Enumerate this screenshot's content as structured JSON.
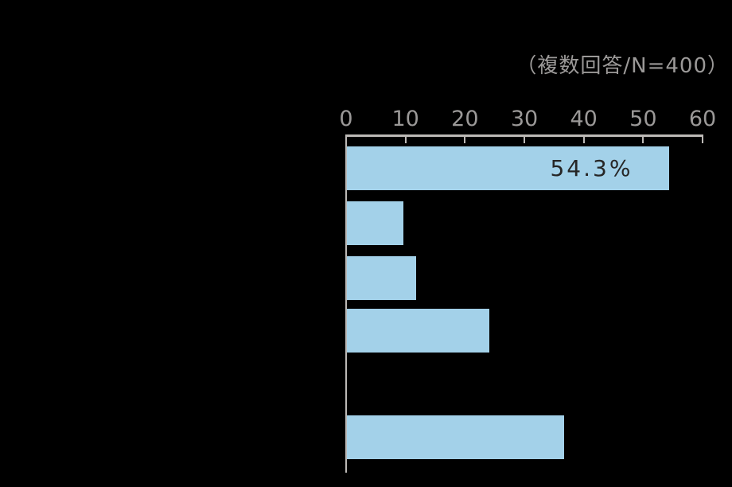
{
  "header": {
    "note": "（複数回答/N=400）"
  },
  "colors": {
    "background": "#000000",
    "bar": "#a3d1e9",
    "axis_line": "#bcb9b6",
    "tick_text": "#9b9998",
    "note_text": "#9b9998",
    "bar_label_text": "#262626"
  },
  "chart_data": {
    "type": "bar",
    "orientation": "horizontal",
    "title": "（複数回答/N=400）",
    "categories": [
      "",
      "",
      "",
      "",
      "",
      ""
    ],
    "values": [
      54.3,
      9.5,
      11.6,
      24.0,
      0,
      36.5
    ],
    "data_labels": [
      "54.3%",
      "",
      "",
      "",
      "",
      ""
    ],
    "xlabel": "",
    "ylabel": "",
    "axis_ticks": [
      0,
      10,
      20,
      30,
      40,
      50,
      60
    ],
    "xlim": [
      0,
      60
    ],
    "grid": false,
    "legend": false
  }
}
